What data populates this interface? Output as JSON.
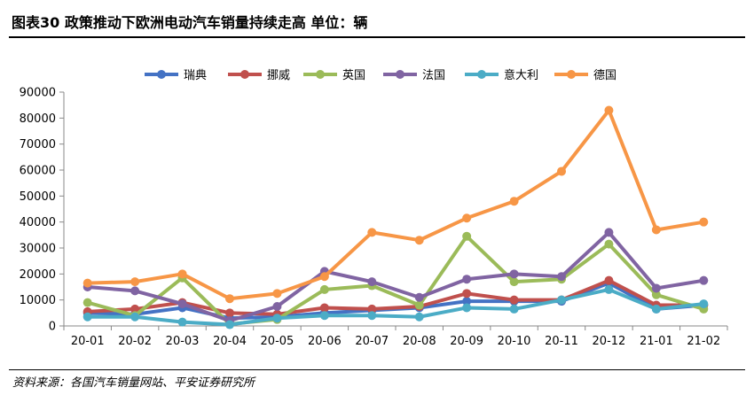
{
  "figure": {
    "title": "图表30    政策推动下欧洲电动汽车销量持续走高    单位：辆",
    "source": "资料来源：各国汽车销量网站、平安证券研究所"
  },
  "chart_data": {
    "type": "line",
    "title": "",
    "xlabel": "",
    "ylabel": "",
    "ylim": [
      0,
      90000
    ],
    "yticks": [
      "0",
      "10000",
      "20000",
      "30000",
      "40000",
      "50000",
      "60000",
      "70000",
      "80000",
      "90000"
    ],
    "grid": false,
    "legend_position": "top",
    "categories": [
      "20-01",
      "20-02",
      "20-03",
      "20-04",
      "20-05",
      "20-06",
      "20-07",
      "20-08",
      "20-09",
      "20-10",
      "20-11",
      "20-12",
      "21-01",
      "21-02"
    ],
    "series": [
      {
        "name": "瑞典",
        "color": "#4472C4",
        "values": [
          5000,
          4500,
          7000,
          3000,
          3500,
          5000,
          6000,
          7000,
          9500,
          9500,
          9500,
          16500,
          6500,
          8000
        ]
      },
      {
        "name": "挪威",
        "color": "#C0504D",
        "values": [
          5500,
          6500,
          9000,
          5000,
          4500,
          7000,
          6500,
          7500,
          12500,
          10000,
          10000,
          17500,
          8000,
          8000
        ]
      },
      {
        "name": "英国",
        "color": "#9BBB59",
        "values": [
          9000,
          4000,
          18500,
          700,
          2500,
          14000,
          15500,
          8000,
          34500,
          17000,
          18000,
          31500,
          12000,
          6500
        ]
      },
      {
        "name": "法国",
        "color": "#8064A2",
        "values": [
          15000,
          13500,
          8500,
          2000,
          7500,
          21000,
          17000,
          11000,
          18000,
          20000,
          19000,
          36000,
          14500,
          17500
        ]
      },
      {
        "name": "意大利",
        "color": "#4BACC6",
        "values": [
          3500,
          3500,
          1500,
          500,
          3000,
          4000,
          4000,
          3500,
          7000,
          6500,
          10000,
          14000,
          6500,
          8500
        ]
      },
      {
        "name": "德国",
        "color": "#F79646",
        "values": [
          16500,
          17000,
          20000,
          10500,
          12500,
          19000,
          36000,
          33000,
          41500,
          48000,
          59500,
          83000,
          37000,
          40000
        ]
      }
    ]
  }
}
